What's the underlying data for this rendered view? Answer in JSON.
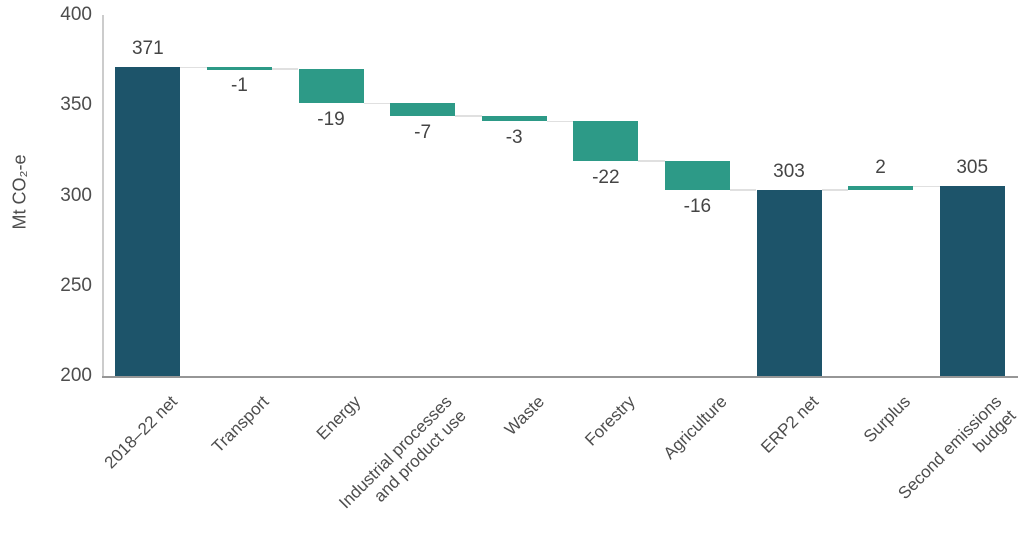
{
  "chart_data": {
    "type": "bar",
    "subtype": "waterfall",
    "title": "",
    "ylabel": "Mt CO₂-e",
    "xlabel": "",
    "ylim": [
      200,
      400
    ],
    "yticks": [
      400,
      350,
      300,
      250,
      200
    ],
    "grid": "off",
    "legend": "none",
    "categories": [
      "2018–22 net",
      "Transport",
      "Energy",
      "Industrial processes\nand product use",
      "Waste",
      "Forestry",
      "Agriculture",
      "ERP2 net",
      "Surplus",
      "Second emissions\nbudget"
    ],
    "bars": [
      {
        "category": "2018–22 net",
        "kind": "total",
        "value": 371,
        "label": "371",
        "start": 200,
        "end": 371
      },
      {
        "category": "Transport",
        "kind": "decrease",
        "value": -1,
        "label": "-1",
        "start": 371,
        "end": 370
      },
      {
        "category": "Energy",
        "kind": "decrease",
        "value": -19,
        "label": "-19",
        "start": 370,
        "end": 351
      },
      {
        "category": "Industrial processes\nand product use",
        "kind": "decrease",
        "value": -7,
        "label": "-7",
        "start": 351,
        "end": 344
      },
      {
        "category": "Waste",
        "kind": "decrease",
        "value": -3,
        "label": "-3",
        "start": 344,
        "end": 341
      },
      {
        "category": "Forestry",
        "kind": "decrease",
        "value": -22,
        "label": "-22",
        "start": 341,
        "end": 319
      },
      {
        "category": "Agriculture",
        "kind": "decrease",
        "value": -16,
        "label": "-16",
        "start": 319,
        "end": 303
      },
      {
        "category": "ERP2 net",
        "kind": "total",
        "value": 303,
        "label": "303",
        "start": 200,
        "end": 303
      },
      {
        "category": "Surplus",
        "kind": "increase",
        "value": 2,
        "label": "2",
        "start": 303,
        "end": 305
      },
      {
        "category": "Second emissions\nbudget",
        "kind": "total",
        "value": 305,
        "label": "305",
        "start": 200,
        "end": 305
      }
    ],
    "colors": {
      "total_bar": "#1d546a",
      "change_bar": "#2d9a87",
      "connector": "#e0e0e0",
      "y_axis_line": "#cccccc",
      "x_axis_line": "#969696",
      "text": "#4d4d4d"
    }
  }
}
